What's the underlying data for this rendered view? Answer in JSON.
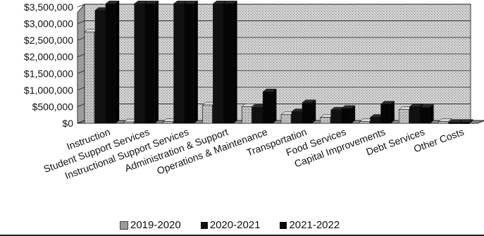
{
  "chart_data": {
    "type": "bar",
    "title": "",
    "xlabel": "",
    "ylabel": "",
    "ylim": [
      0,
      3500000
    ],
    "y_ticks": [
      "$0",
      "$500,000",
      "$1,000,000",
      "$1,500,000",
      "$2,000,000",
      "$2,500,000",
      "$3,000,000",
      "$3,500,000"
    ],
    "categories": [
      "Instruction",
      "Student Support Services",
      "Instructional Support Services",
      "Administration & Support",
      "Operations & Maintenance",
      "Transportation",
      "Food Services",
      "Capital Improvements",
      "Debt Services",
      "Other Costs"
    ],
    "series": [
      {
        "name": "2019-2020",
        "values": [
          2750000,
          40000,
          50000,
          550000,
          500000,
          260000,
          180000,
          50000,
          410000,
          50000
        ]
      },
      {
        "name": "2020-2021",
        "values": [
          3400000,
          3600000,
          3600000,
          3600000,
          480000,
          350000,
          400000,
          180000,
          500000,
          30000
        ]
      },
      {
        "name": "2021-2022",
        "values": [
          3600000,
          3600000,
          3600000,
          3600000,
          950000,
          620000,
          450000,
          580000,
          480000,
          30000
        ]
      }
    ],
    "grid": true,
    "legend_position": "bottom",
    "colors": {
      "2019-2020": "#9a9a9a",
      "2020-2021": "#111111",
      "2021-2022": "#050505",
      "wall": "#c4c4c4",
      "floor": "#8c8c8c"
    }
  }
}
